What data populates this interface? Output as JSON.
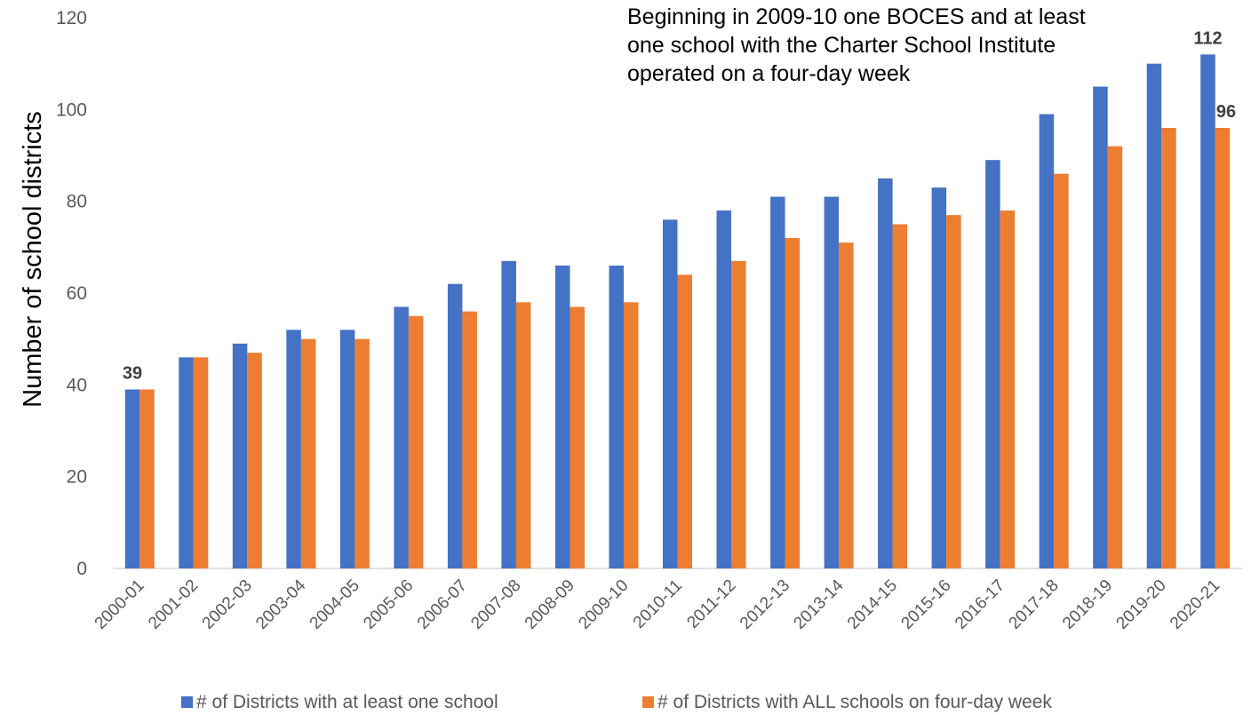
{
  "chart_data": {
    "type": "bar",
    "ylabel": "Number of school districts",
    "xlabel": "",
    "ylim": [
      0,
      120
    ],
    "yticks": [
      0,
      20,
      40,
      60,
      80,
      100,
      120
    ],
    "grid": false,
    "legend_position": "bottom",
    "categories": [
      "2000-01",
      "2001-02",
      "2002-03",
      "2003-04",
      "2004-05",
      "2005-06",
      "2006-07",
      "2007-08",
      "2008-09",
      "2009-10",
      "2010-11",
      "2011-12",
      "2012-13",
      "2013-14",
      "2014-15",
      "2015-16",
      "2016-17",
      "2017-18",
      "2018-19",
      "2019-20",
      "2020-21"
    ],
    "series": [
      {
        "name": "# of Districts with at least one school",
        "color": "#4472C4",
        "values": [
          39,
          46,
          49,
          52,
          52,
          57,
          62,
          67,
          66,
          66,
          76,
          78,
          81,
          81,
          85,
          83,
          89,
          99,
          105,
          110,
          112
        ]
      },
      {
        "name": "# of Districts with ALL schools on four-day week",
        "color": "#ED7D31",
        "values": [
          39,
          46,
          47,
          50,
          50,
          55,
          56,
          58,
          57,
          58,
          64,
          67,
          72,
          71,
          75,
          77,
          78,
          86,
          92,
          96,
          96
        ]
      }
    ],
    "data_labels": [
      {
        "series": 0,
        "index": 0,
        "text": "39"
      },
      {
        "series": 0,
        "index": 20,
        "text": "112"
      },
      {
        "series": 1,
        "index": 20,
        "text": "96"
      }
    ],
    "annotation": [
      "Beginning in 2009-10 one BOCES and at least",
      "one school with the Charter School Institute",
      "operated on a four-day week"
    ]
  }
}
